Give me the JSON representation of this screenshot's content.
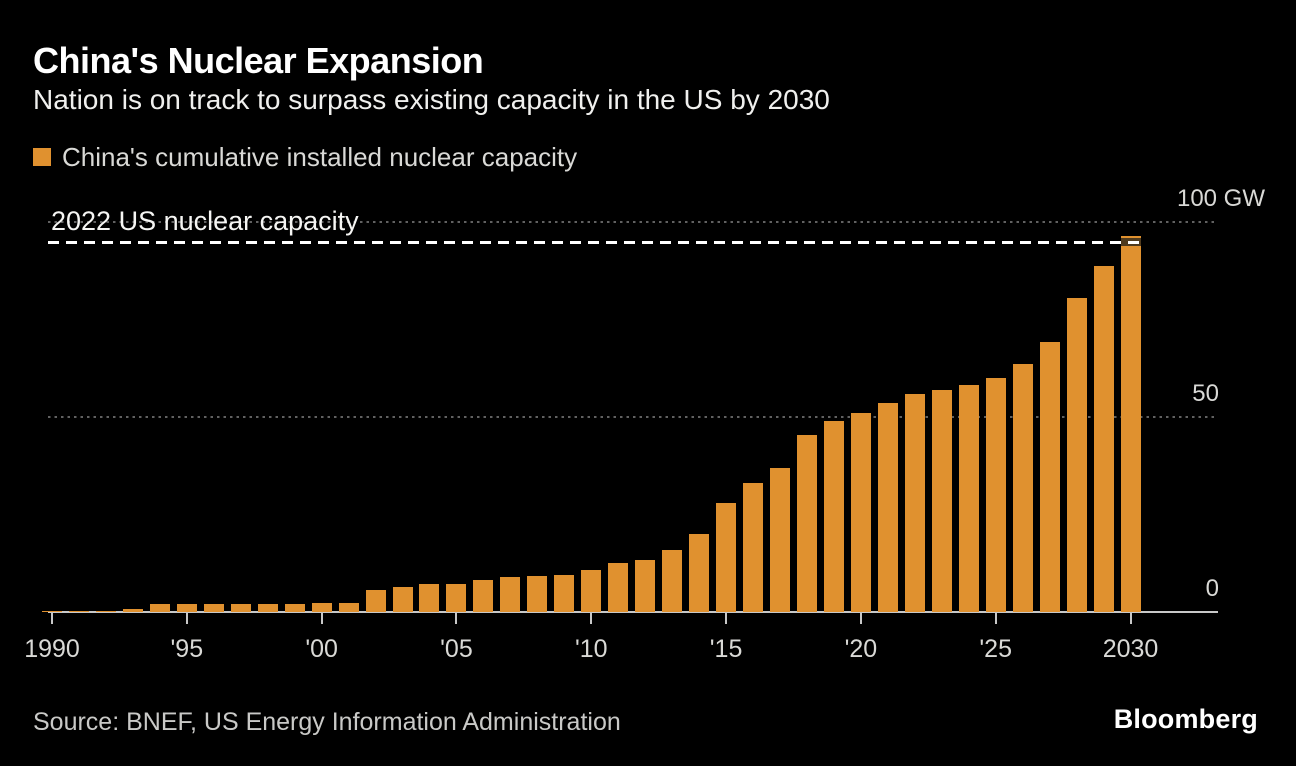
{
  "header": {
    "title": "China's Nuclear Expansion",
    "subtitle": "Nation is on track to surpass existing capacity in the US by 2030"
  },
  "legend": {
    "label": "China's cumulative installed nuclear capacity",
    "swatch_color": "#E0912F",
    "swatch_icon": "legend-square-icon"
  },
  "chart_data": {
    "type": "bar",
    "title": "China's Nuclear Expansion",
    "series_name": "China's cumulative installed nuclear capacity",
    "unit": "GW",
    "bar_color": "#E0912F",
    "background_color": "#000000",
    "grid": "horizontal dotted",
    "legend_position": "top-left",
    "ylim": [
      0,
      100
    ],
    "years": [
      1990,
      1991,
      1992,
      1993,
      1994,
      1995,
      1996,
      1997,
      1998,
      1999,
      2000,
      2001,
      2002,
      2003,
      2004,
      2005,
      2006,
      2007,
      2008,
      2009,
      2010,
      2011,
      2012,
      2013,
      2014,
      2015,
      2016,
      2017,
      2018,
      2019,
      2020,
      2021,
      2022,
      2023,
      2024,
      2025,
      2026,
      2027,
      2028,
      2029,
      2030
    ],
    "values": [
      0.2,
      0.3,
      0.3,
      0.8,
      2.0,
      2.1,
      2.1,
      2.1,
      2.1,
      2.1,
      2.2,
      2.2,
      5.6,
      6.5,
      7.1,
      7.1,
      8.2,
      9.0,
      9.3,
      9.4,
      10.8,
      12.5,
      13.4,
      16.0,
      20.1,
      28.0,
      33.2,
      36.9,
      45.5,
      48.9,
      51.0,
      53.5,
      56.0,
      57.0,
      58.3,
      60.0,
      63.7,
      69.2,
      80.5,
      88.8,
      96.5
    ],
    "x_ticks": [
      {
        "year": 1990,
        "label": "1990"
      },
      {
        "year": 1995,
        "label": "'95"
      },
      {
        "year": 2000,
        "label": "'00"
      },
      {
        "year": 2005,
        "label": "'05"
      },
      {
        "year": 2010,
        "label": "'10"
      },
      {
        "year": 2015,
        "label": "'15"
      },
      {
        "year": 2020,
        "label": "'20"
      },
      {
        "year": 2025,
        "label": "'25"
      },
      {
        "year": 2030,
        "label": "2030"
      }
    ],
    "y_ticks": [
      {
        "value": 0,
        "label": "0"
      },
      {
        "value": 50,
        "label": "50"
      },
      {
        "value": 100,
        "label": "100 GW"
      }
    ],
    "reference_line": {
      "label": "2022 US nuclear capacity",
      "value": 95,
      "style": "dashed",
      "color": "#ffffff"
    }
  },
  "footer": {
    "source": "Source: BNEF, US Energy Information Administration",
    "brand": "Bloomberg"
  }
}
